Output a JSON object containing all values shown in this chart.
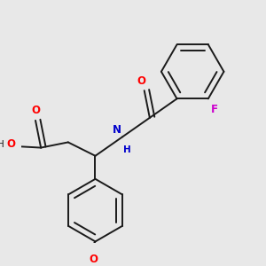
{
  "bg_color": "#e8e8e8",
  "bond_color": "#1a1a1a",
  "atom_colors": {
    "O": "#ff0000",
    "N": "#0000cc",
    "F": "#cc00cc",
    "C": "#1a1a1a"
  },
  "font_size": 8.5,
  "line_width": 1.4
}
